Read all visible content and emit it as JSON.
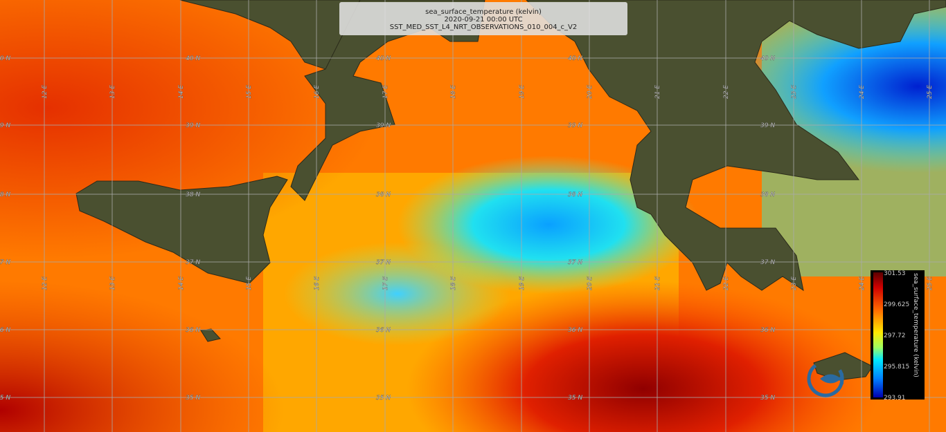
{
  "header": {
    "title": "sea_surface_temperature (kelvin)",
    "date": "2020-09-21 00:00 UTC",
    "product": "SST_MED_SST_L4_NRT_OBSERVATIONS_010_004_c_V2"
  },
  "graticule": {
    "latitudes": [
      "40 N",
      "39 N",
      "38 N",
      "37 N",
      "36 N",
      "35 N"
    ],
    "longitudes": [
      "12 E",
      "13 E",
      "14 E",
      "15 E",
      "16 E",
      "17 E",
      "18 E",
      "19 E",
      "20 E",
      "21 E",
      "22 E",
      "23 E",
      "24 E",
      "25 E"
    ]
  },
  "colorbar": {
    "title": "sea_surface_temperature (kelvin)",
    "labels": [
      "301.53",
      "299.625",
      "297.72",
      "295.815",
      "293.91"
    ]
  }
}
